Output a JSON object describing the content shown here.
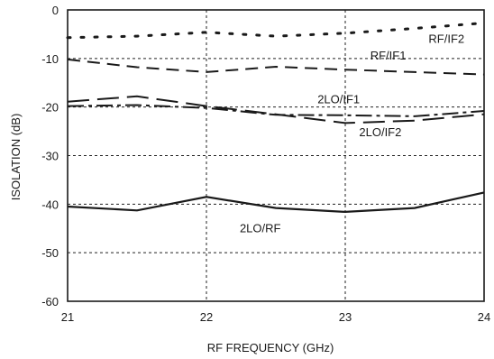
{
  "chart_data": {
    "type": "line",
    "xlabel": "RF FREQUENCY (GHz)",
    "ylabel": "ISOLATION (dB)",
    "xlim": [
      21,
      24
    ],
    "ylim": [
      -60,
      0
    ],
    "xticks": [
      21,
      22,
      23,
      24
    ],
    "yticks": [
      0,
      -10,
      -20,
      -30,
      -40,
      -50,
      -60
    ],
    "grid": "dashed",
    "series": [
      {
        "name": "RF/IF2",
        "style": "dotted",
        "x": [
          21,
          21.5,
          22,
          22.5,
          23,
          23.5,
          24
        ],
        "y": [
          -5.7,
          -5.4,
          -4.6,
          -5.4,
          -4.8,
          -3.8,
          -2.7
        ]
      },
      {
        "name": "RF/IF1",
        "style": "dashed",
        "x": [
          21,
          21.5,
          22,
          22.5,
          23,
          23.5,
          24
        ],
        "y": [
          -10.2,
          -11.8,
          -12.8,
          -11.7,
          -12.3,
          -12.8,
          -13.3
        ]
      },
      {
        "name": "2LO/IF1",
        "style": "dash-dot",
        "x": [
          21,
          21.5,
          22,
          22.5,
          23,
          23.5,
          24
        ],
        "y": [
          -19.8,
          -19.6,
          -20.2,
          -21.6,
          -21.7,
          -21.9,
          -20.8
        ]
      },
      {
        "name": "2LO/IF2",
        "style": "long-dash",
        "x": [
          21,
          21.5,
          22,
          22.5,
          23,
          23.5,
          24
        ],
        "y": [
          -18.9,
          -17.8,
          -19.8,
          -21.5,
          -23.3,
          -22.8,
          -21.5
        ]
      },
      {
        "name": "2LO/RF",
        "style": "solid",
        "x": [
          21,
          21.5,
          22,
          22.5,
          23,
          23.5,
          24
        ],
        "y": [
          -40.5,
          -41.3,
          -38.5,
          -40.8,
          -41.6,
          -40.8,
          -37.6
        ]
      }
    ]
  }
}
